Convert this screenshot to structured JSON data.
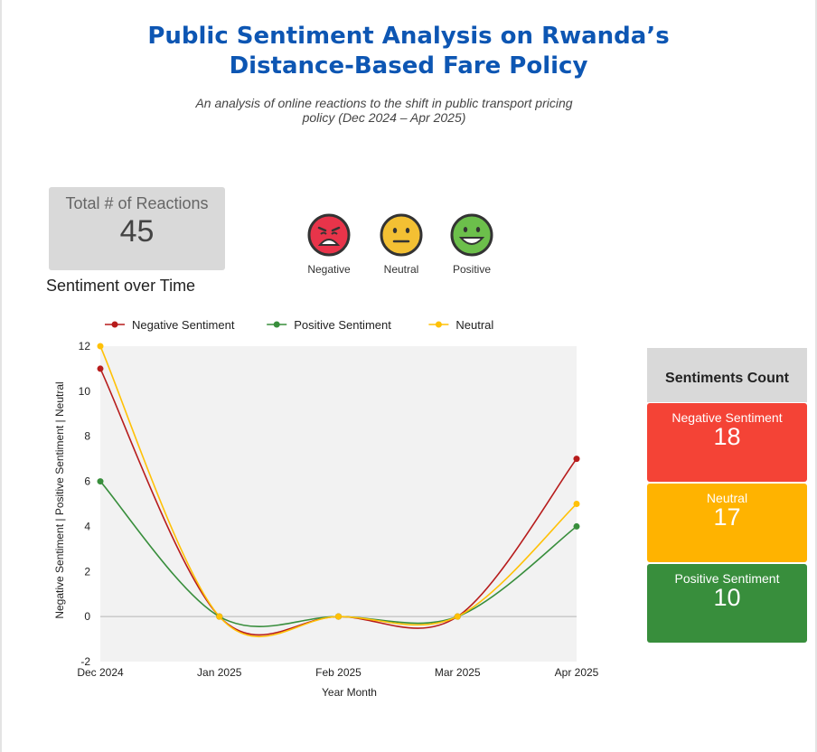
{
  "header": {
    "title_line1": "Public Sentiment Analysis on Rwanda’s",
    "title_line2": "Distance-Based Fare Policy",
    "subtitle": "An analysis of online reactions to the shift in public transport pricing policy (Dec 2024 – Apr 2025)"
  },
  "total_card": {
    "label": "Total # of Reactions",
    "value": "45"
  },
  "emojis": [
    {
      "label": "Negative",
      "icon": "angry-face-icon",
      "color": "#e8344a"
    },
    {
      "label": "Neutral",
      "icon": "neutral-face-icon",
      "color": "#f3c033"
    },
    {
      "label": "Positive",
      "icon": "smiling-face-icon",
      "color": "#6cbf4b"
    }
  ],
  "chart_title": "Sentiment over Time",
  "counts": {
    "header": "Sentiments Count",
    "items": [
      {
        "label": "Negative Sentiment",
        "value": "18",
        "color": "#f44336"
      },
      {
        "label": "Neutral",
        "value": "17",
        "color": "#ffb300"
      },
      {
        "label": "Positive Sentiment",
        "value": "10",
        "color": "#388e3c"
      }
    ]
  },
  "chart_data": {
    "type": "line",
    "categories": [
      "Dec 2024",
      "Jan 2025",
      "Feb 2025",
      "Mar 2025",
      "Apr 2025"
    ],
    "series": [
      {
        "name": "Negative Sentiment",
        "values": [
          11,
          0,
          0,
          0,
          7
        ],
        "color": "#b71c1c"
      },
      {
        "name": "Positive Sentiment",
        "values": [
          6,
          0,
          0,
          0,
          4
        ],
        "color": "#388e3c"
      },
      {
        "name": "Neutral",
        "values": [
          12,
          0,
          0,
          0,
          5
        ],
        "color": "#ffc107"
      }
    ],
    "xlabel": "Year Month",
    "ylabel": "Negative Sentiment | Positive Sentiment | Neutral",
    "ylim": [
      -2,
      12
    ],
    "yticks": [
      -2,
      0,
      2,
      4,
      6,
      8,
      10,
      12
    ],
    "smooth": true,
    "legend": "top",
    "grid": false
  }
}
